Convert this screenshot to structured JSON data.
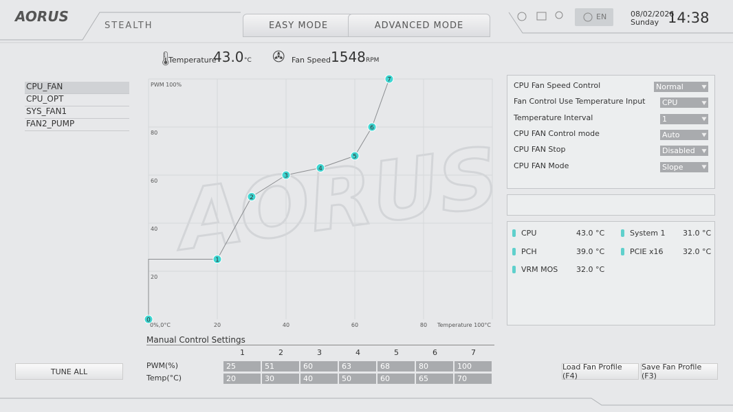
{
  "header": {
    "logo": "AORUS",
    "theme": "STEALTH",
    "tabs": [
      "EASY MODE",
      "ADVANCED MODE"
    ],
    "language": "EN",
    "date": "08/02/2026",
    "weekday": "Sunday",
    "time": "14:38"
  },
  "status": {
    "temperature_label": "Temperature",
    "temperature": "43.0",
    "temperature_unit": "°C",
    "fan_label": "Fan Speed",
    "fan_speed": "1548",
    "fan_unit": "RPM"
  },
  "fans": [
    "CPU_FAN",
    "CPU_OPT",
    "SYS_FAN1",
    "FAN2_PUMP"
  ],
  "chart_data": {
    "type": "line",
    "x": [
      0,
      20,
      30,
      40,
      50,
      60,
      65,
      70
    ],
    "values": [
      0,
      25,
      51,
      60,
      63,
      68,
      80,
      100
    ],
    "point_labels": [
      "0",
      "1",
      "2",
      "3",
      "4",
      "5",
      "6",
      "7"
    ],
    "color": "#3fd6d2",
    "xlim": [
      0,
      100
    ],
    "xticks": [
      {
        "value": 0,
        "label": "0%,0°C"
      },
      20,
      40,
      60,
      80,
      {
        "value": 100,
        "label": "Temperature 100°C"
      }
    ],
    "ylim": [
      0,
      100
    ],
    "yticks": [
      20,
      40,
      60,
      80,
      {
        "value": 100,
        "label": "PWM 100%"
      }
    ],
    "grid": true
  },
  "manual": {
    "title": "Manual Control Settings",
    "row_labels": [
      "PWM(%)",
      "Temp(°C)"
    ]
  },
  "settings": [
    [
      "CPU Fan Speed Control",
      "Normal"
    ],
    [
      "Fan Control Use Temperature Input",
      "CPU"
    ],
    [
      "Temperature Interval",
      "1"
    ],
    [
      "CPU FAN Control mode",
      "Auto"
    ],
    [
      "CPU FAN Stop",
      "Disabled"
    ],
    [
      "CPU FAN Mode",
      "Slope"
    ]
  ],
  "sensors": [
    [
      "CPU",
      "43.0 °C"
    ],
    [
      "PCH",
      "39.0 °C"
    ],
    [
      "VRM MOS",
      "32.0 °C"
    ],
    [
      "System 1",
      "31.0 °C"
    ],
    [
      "PCIE x16",
      "32.0 °C"
    ]
  ],
  "buttons": {
    "tune_all": "TUNE ALL",
    "load": "Load Fan Profile (F4)",
    "save": "Save Fan Profile (F3)"
  }
}
